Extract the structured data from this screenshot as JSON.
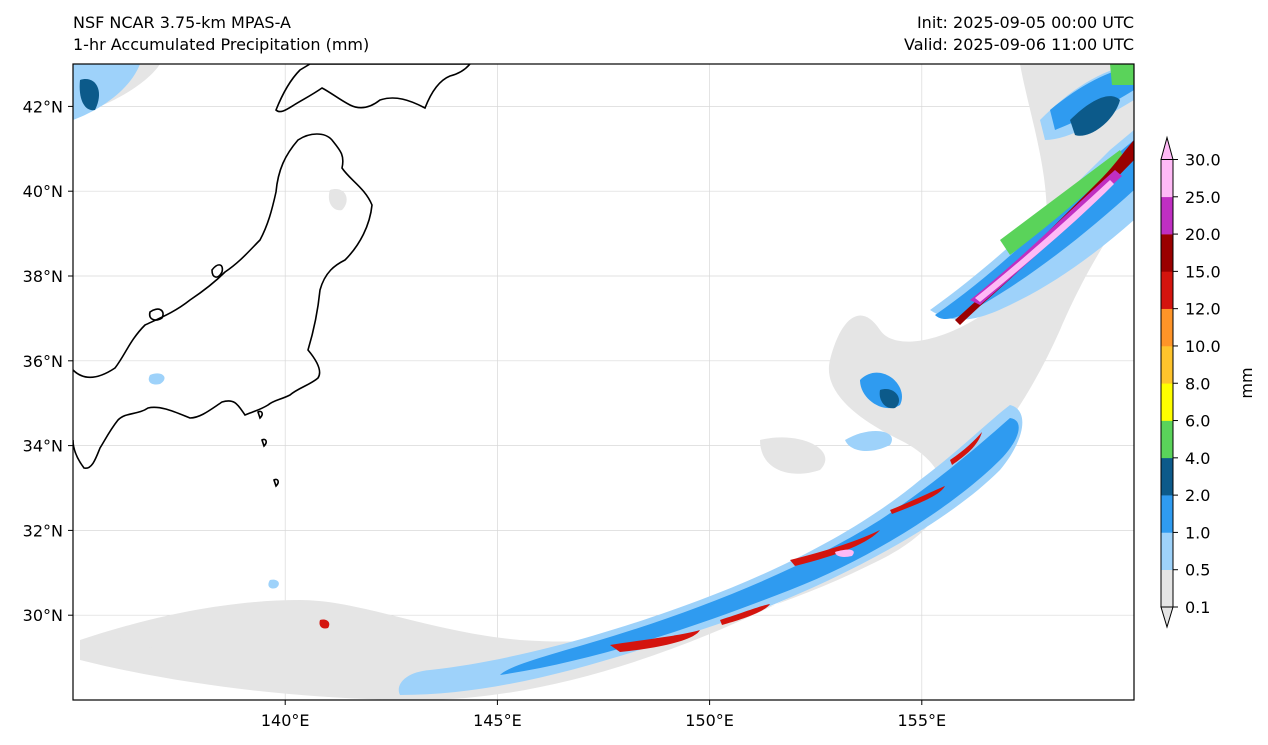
{
  "header": {
    "left_line1": "NSF NCAR 3.75-km MPAS-A",
    "left_line2": "1-hr Accumulated Precipitation (mm)",
    "right_line1": "Init: 2025-09-05 00:00 UTC",
    "right_line2": "Valid: 2025-09-06 11:00 UTC"
  },
  "map": {
    "lon_range": [
      135,
      160
    ],
    "lat_range": [
      28,
      43
    ],
    "lon_ticks": [
      "140°E",
      "145°E",
      "150°E",
      "155°E"
    ],
    "lon_tick_values": [
      140,
      145,
      150,
      155
    ],
    "lat_ticks": [
      "42°N",
      "40°N",
      "38°N",
      "36°N",
      "34°N",
      "32°N",
      "30°N"
    ],
    "lat_tick_values": [
      42,
      40,
      38,
      36,
      34,
      32,
      30
    ],
    "gridlines": true
  },
  "colorbar": {
    "unit_label": "mm",
    "levels": [
      "0.1",
      "0.5",
      "1.0",
      "2.0",
      "4.0",
      "6.0",
      "8.0",
      "10.0",
      "12.0",
      "15.0",
      "20.0",
      "25.0",
      "30.0"
    ],
    "colors": [
      "#e5e5e5",
      "#9ed2fa",
      "#2f9bf0",
      "#0c5a8a",
      "#5ad35a",
      "#ffff00",
      "#ffc42c",
      "#ff9428",
      "#d4140e",
      "#9a0000",
      "#c02fc2",
      "#ffbaf6"
    ],
    "extend": "both"
  }
}
